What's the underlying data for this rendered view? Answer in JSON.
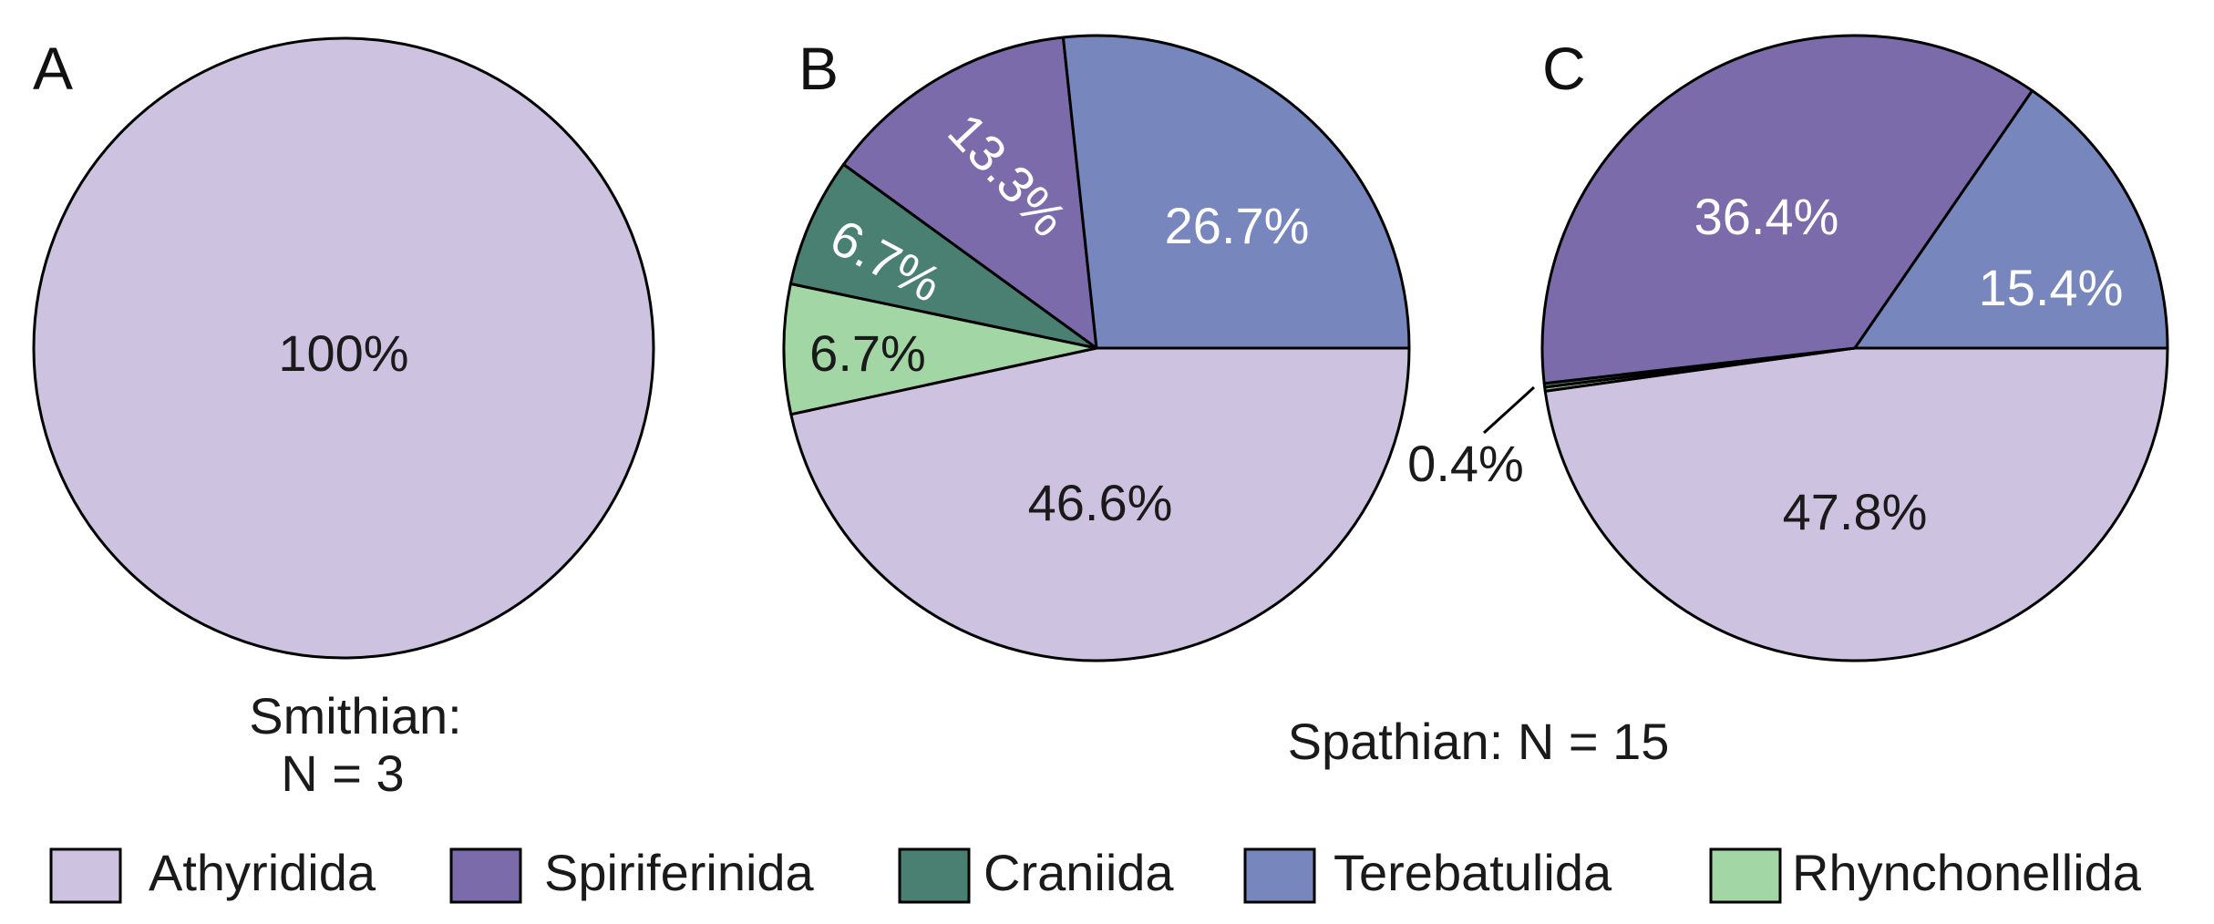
{
  "chart_data": [
    {
      "type": "pie",
      "panel": "A",
      "slices": [
        {
          "category": "Athyridida",
          "value": 100,
          "label": "100%"
        }
      ]
    },
    {
      "type": "pie",
      "panel": "B",
      "slices": [
        {
          "category": "Athyridida",
          "value": 46.6,
          "label": "46.6%"
        },
        {
          "category": "Rhynchonellida",
          "value": 6.7,
          "label": "6.7%"
        },
        {
          "category": "Craniida",
          "value": 6.7,
          "label": "6.7%"
        },
        {
          "category": "Spiriferinida",
          "value": 13.3,
          "label": "13.3%"
        },
        {
          "category": "Terebatulida",
          "value": 26.7,
          "label": "26.7%"
        }
      ]
    },
    {
      "type": "pie",
      "panel": "C",
      "slices": [
        {
          "category": "Athyridida",
          "value": 47.8,
          "label": "47.8%"
        },
        {
          "category": "Rhynchonellida",
          "value": 0.2,
          "label": ""
        },
        {
          "category": "Craniida",
          "value": 0.2,
          "label": ""
        },
        {
          "category": "Spiriferinida",
          "value": 36.4,
          "label": "36.4%"
        },
        {
          "category": "Terebatulida",
          "value": 15.4,
          "label": "15.4%"
        }
      ],
      "callout": "0.4%"
    }
  ],
  "captions": {
    "smithian_line1": "Smithian:",
    "smithian_line2": "N = 3",
    "spathian": "Spathian: N = 15"
  },
  "legend": [
    {
      "name": "Athyridida",
      "color": "#cdc3e1"
    },
    {
      "name": "Spiriferinida",
      "color": "#7b6bab"
    },
    {
      "name": "Craniida",
      "color": "#4a8071"
    },
    {
      "name": "Terebatulida",
      "color": "#7787bd"
    },
    {
      "name": "Rhynchonellida",
      "color": "#a2d6a5"
    }
  ],
  "colors": {
    "Athyridida": "#cdc3e1",
    "Spiriferinida": "#7b6bab",
    "Craniida": "#4a8071",
    "Terebatulida": "#7787bd",
    "Rhynchonellida": "#a2d6a5"
  },
  "label_colors": {
    "Athyridida": "#1a1a1a",
    "Spiriferinida": "#ffffff",
    "Craniida": "#ffffff",
    "Terebatulida": "#ffffff",
    "Rhynchonellida": "#1a1a1a"
  }
}
